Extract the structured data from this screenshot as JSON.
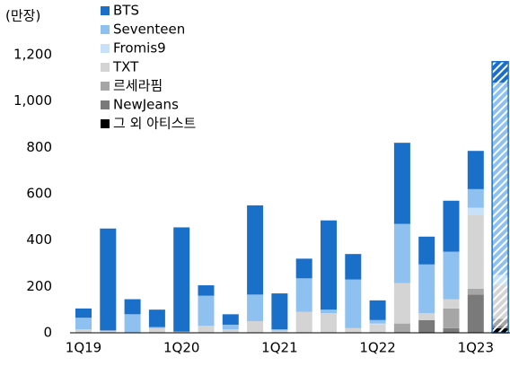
{
  "chart_data": {
    "type": "bar",
    "stacked": true,
    "y_axis_label": "(만장)",
    "categories": [
      "1Q19",
      null,
      null,
      null,
      "1Q20",
      null,
      null,
      null,
      "1Q21",
      null,
      null,
      null,
      "1Q22",
      null,
      null,
      null,
      "1Q23",
      null
    ],
    "series": [
      {
        "name": "BTS",
        "color": "#1a6fc9",
        "values": [
          40,
          440,
          65,
          75,
          450,
          45,
          45,
          385,
          155,
          85,
          385,
          110,
          85,
          350,
          120,
          220,
          165,
          90
        ]
      },
      {
        "name": "Seventeen",
        "color": "#8fc1f0",
        "values": [
          50,
          0,
          80,
          5,
          0,
          130,
          20,
          115,
          5,
          145,
          15,
          210,
          15,
          255,
          210,
          205,
          80,
          830
        ]
      },
      {
        "name": "Fromis9",
        "color": "#c6e1f8",
        "values": [
          0,
          0,
          0,
          0,
          0,
          0,
          0,
          0,
          0,
          0,
          0,
          0,
          5,
          0,
          0,
          0,
          30,
          40
        ]
      },
      {
        "name": "TXT",
        "color": "#d4d4d4",
        "values": [
          15,
          10,
          0,
          20,
          5,
          30,
          15,
          50,
          10,
          90,
          85,
          20,
          35,
          175,
          30,
          40,
          320,
          150
        ]
      },
      {
        "name": "르세라핌",
        "color": "#a6a6a6",
        "values": [
          0,
          0,
          0,
          0,
          0,
          0,
          0,
          0,
          0,
          0,
          0,
          0,
          0,
          40,
          0,
          85,
          25,
          30
        ]
      },
      {
        "name": "NewJeans",
        "color": "#7a7a7a",
        "values": [
          0,
          0,
          0,
          0,
          0,
          0,
          0,
          0,
          0,
          0,
          0,
          0,
          0,
          0,
          55,
          20,
          165,
          10
        ]
      },
      {
        "name": "그 외 아티스트",
        "color": "#000000",
        "values": [
          0,
          0,
          0,
          0,
          0,
          0,
          0,
          0,
          0,
          0,
          0,
          0,
          0,
          0,
          0,
          0,
          0,
          20
        ]
      }
    ],
    "hatched_index": 17,
    "ylim": [
      0,
      1200
    ],
    "yticks": [
      0,
      200,
      400,
      600,
      800,
      {
        "value": 1000,
        "label": "1,000"
      },
      {
        "value": 1200,
        "label": "1,200"
      }
    ],
    "grid": false,
    "legend": "top"
  }
}
